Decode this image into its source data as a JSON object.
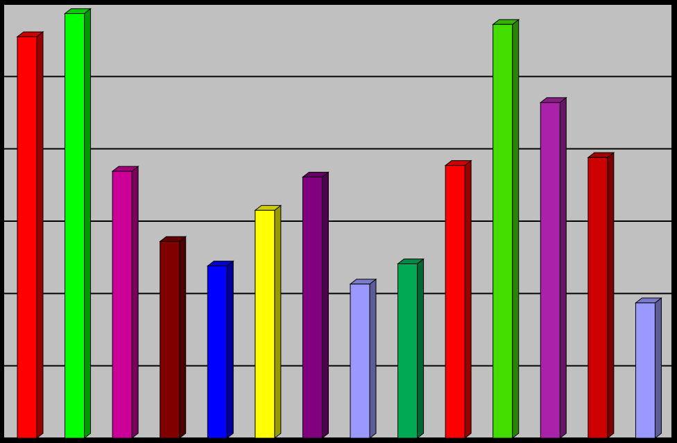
{
  "chart_data": {
    "type": "bar3d",
    "values": [
      5.55,
      5.87,
      3.69,
      2.72,
      2.38,
      3.15,
      3.61,
      2.13,
      2.41,
      3.77,
      5.72,
      4.64,
      3.88,
      1.87
    ],
    "colors": [
      "#ff0000",
      "#00ff00",
      "#cc0099",
      "#800000",
      "#0000ff",
      "#ffff00",
      "#800080",
      "#9999ff",
      "#00aa55",
      "#ff0000",
      "#44dd00",
      "#aa22aa",
      "#cc0000",
      "#9999ff"
    ],
    "ylim": [
      0,
      6
    ],
    "yticks": [
      0,
      1,
      2,
      3,
      4,
      5,
      6
    ],
    "grid": true
  }
}
